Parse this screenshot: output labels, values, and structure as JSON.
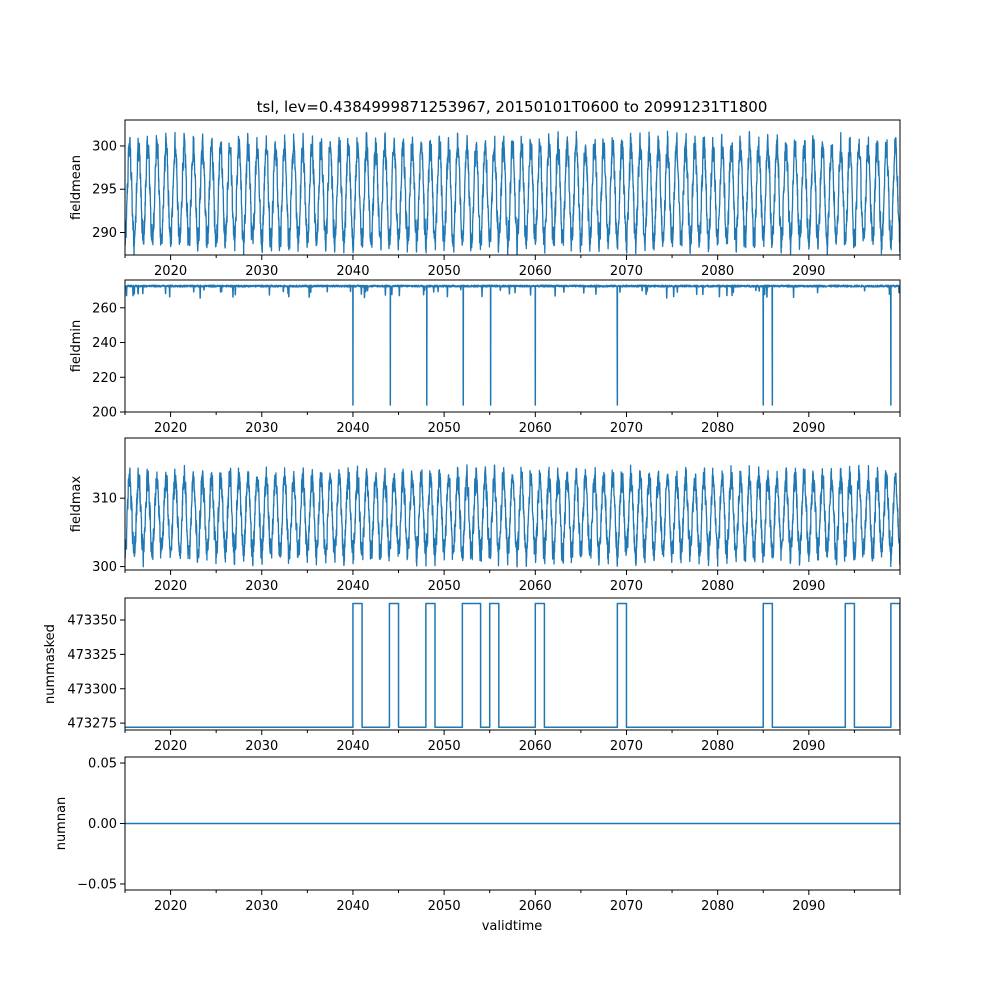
{
  "chart_data": {
    "type": "line",
    "title": "tsl, lev=0.4384999871253967, 20150101T0600 to 20991231T1800",
    "xlabel": "validtime",
    "xlim": [
      2015.0,
      2100.0
    ],
    "x_ticks": [
      2020,
      2030,
      2040,
      2050,
      2060,
      2070,
      2080,
      2090
    ],
    "x_tick_labels": [
      "2020",
      "2030",
      "2040",
      "2050",
      "2060",
      "2070",
      "2080",
      "2090"
    ],
    "colors": {
      "line": "#1f77b4"
    },
    "panels": [
      {
        "ylabel": "fieldmean",
        "ylim": [
          287.4,
          303.0
        ],
        "y_ticks": [
          290,
          295,
          300
        ],
        "y_tick_labels": [
          "290",
          "295",
          "300"
        ],
        "pattern": "seasonal",
        "mean": 294.5,
        "amplitude": 5.5,
        "noise": 1.2
      },
      {
        "ylabel": "fieldmin",
        "ylim": [
          200,
          276
        ],
        "y_ticks": [
          200,
          220,
          240,
          260
        ],
        "y_tick_labels": [
          "200",
          "220",
          "240",
          "260"
        ],
        "pattern": "baseline_spikes",
        "baseline": 272.5,
        "spike_value": 204,
        "spike_years": [
          2040.0,
          2044.1,
          2048.1,
          2052.1,
          2055.1,
          2060.0,
          2069.0,
          2085.0,
          2086.0,
          2099.0
        ]
      },
      {
        "ylabel": "fieldmax",
        "ylim": [
          299.5,
          318.8
        ],
        "y_ticks": [
          300,
          310
        ],
        "y_tick_labels": [
          "300",
          "310"
        ],
        "pattern": "seasonal",
        "mean": 307.5,
        "amplitude": 5.5,
        "noise": 1.5
      },
      {
        "ylabel": "nummasked",
        "ylim": [
          473270,
          473366
        ],
        "y_ticks": [
          473275,
          473300,
          473325,
          473350
        ],
        "y_tick_labels": [
          "473275",
          "473300",
          "473325",
          "473350"
        ],
        "pattern": "step",
        "low": 473272,
        "high": 473362,
        "high_intervals": [
          [
            2040.0,
            2041.0
          ],
          [
            2044.0,
            2045.0
          ],
          [
            2048.0,
            2049.0
          ],
          [
            2052.0,
            2054.0
          ],
          [
            2055.0,
            2056.0
          ],
          [
            2060.0,
            2061.0
          ],
          [
            2069.0,
            2070.0
          ],
          [
            2085.0,
            2086.0
          ],
          [
            2094.0,
            2095.0
          ],
          [
            2099.0,
            2100.0
          ]
        ]
      },
      {
        "ylabel": "numnan",
        "ylim": [
          -0.055,
          0.055
        ],
        "y_ticks": [
          -0.05,
          0.0,
          0.05
        ],
        "y_tick_labels": [
          "−0.05",
          "0.00",
          "0.05"
        ],
        "pattern": "constant",
        "value": 0.0
      }
    ]
  }
}
